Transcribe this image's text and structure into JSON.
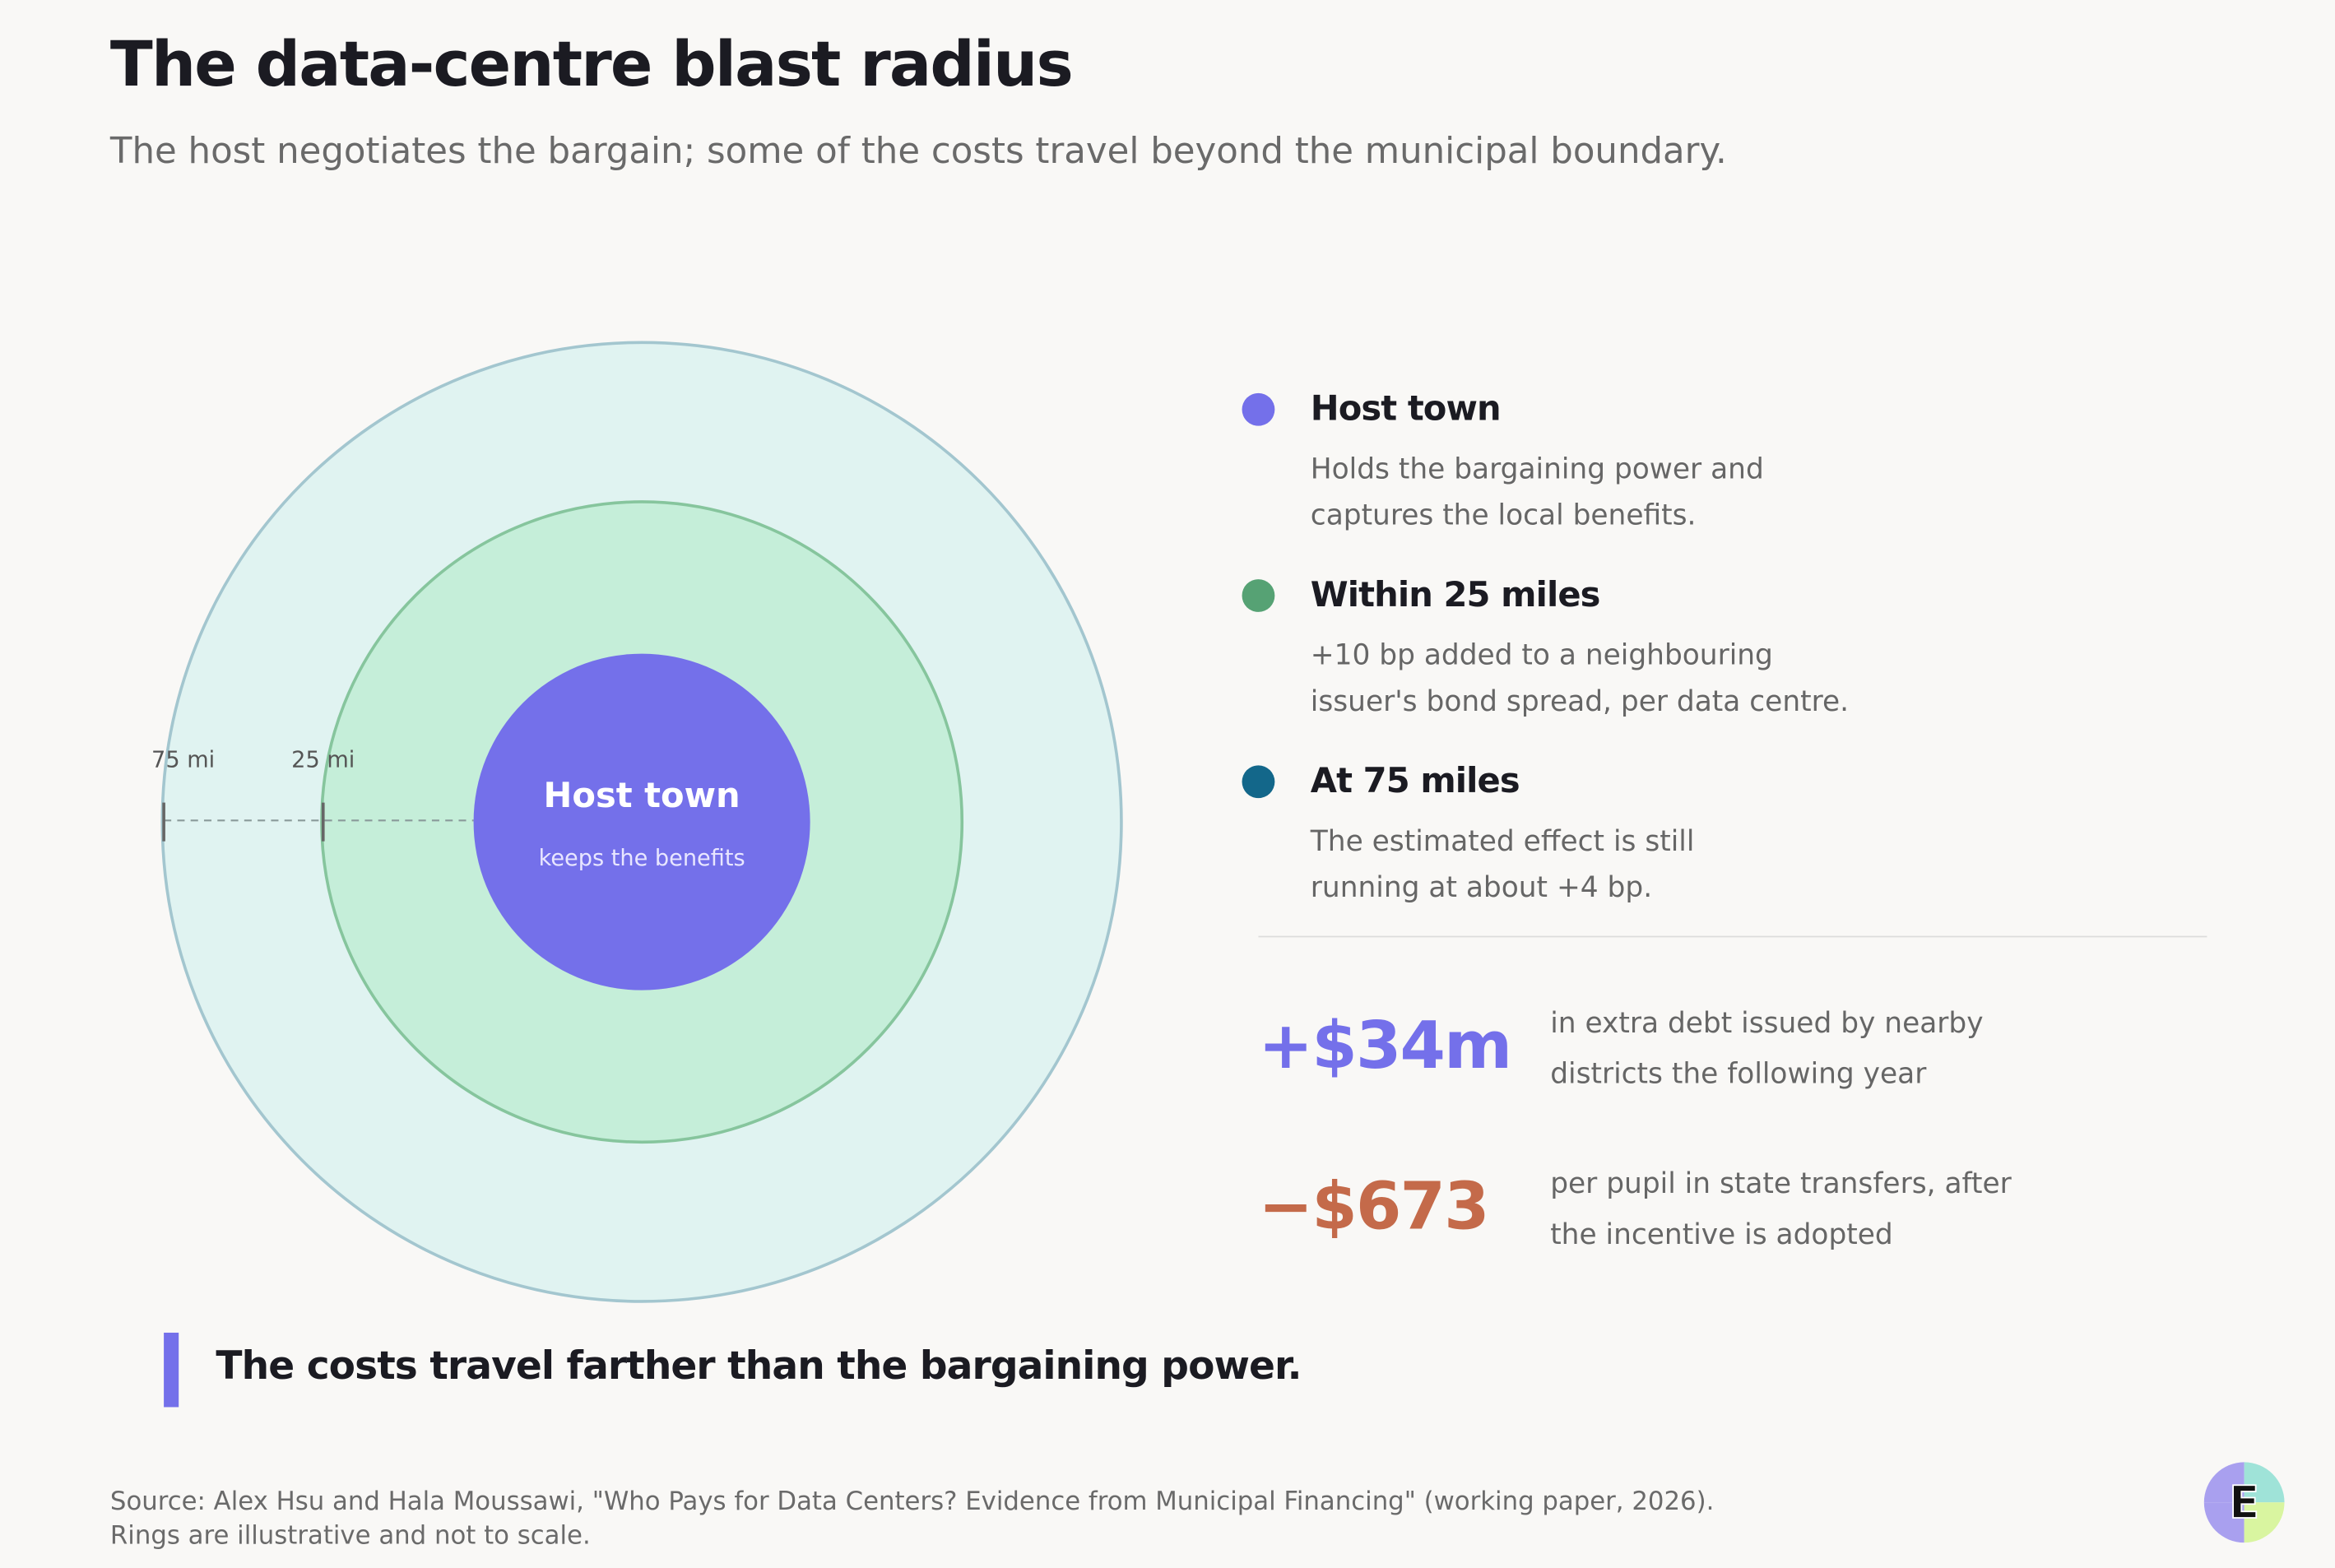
{
  "header": {
    "title": "The data-centre blast radius",
    "subtitle": "The host negotiates the bargain; some of the costs travel beyond the municipal boundary."
  },
  "diagram": {
    "outer_label": "75 mi",
    "middle_label": "25 mi",
    "center_title": "Host town",
    "center_subtitle": "keeps the benefits"
  },
  "legend": [
    {
      "title": "Host town",
      "lines": [
        "Holds the bargaining power and",
        "captures the local benefits."
      ]
    },
    {
      "title": "Within 25 miles",
      "lines": [
        "+10 bp added to a neighbouring",
        "issuer's bond spread, per data centre."
      ]
    },
    {
      "title": "At 75 miles",
      "lines": [
        "The estimated effect is still",
        "running at about +4 bp."
      ]
    }
  ],
  "stats": [
    {
      "value": "+$34m",
      "lines": [
        "in extra debt issued by nearby",
        "districts the following year"
      ]
    },
    {
      "value": "−$673",
      "lines": [
        "per pupil in state transfers, after",
        "the incentive is adopted"
      ]
    }
  ],
  "callout": "The costs travel farther than the bargaining power.",
  "footer": {
    "lines": [
      "Source: Alex Hsu and Hala Moussawi, \"Who Pays for Data Centers? Evidence from Municipal Financing\" (working paper, 2026).",
      "Rings are illustrative and not to scale."
    ]
  },
  "logo": "E"
}
